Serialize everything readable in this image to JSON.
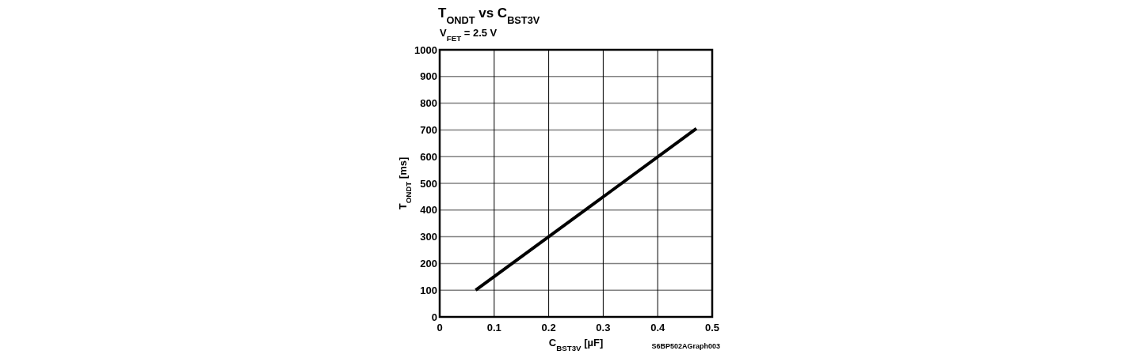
{
  "chart_data": {
    "type": "line",
    "title": "T$_{ONDT}$ vs C$_{BST3V}$",
    "subtitle": "V$_{FET}$ = 2.5 V",
    "xlabel": "C$_{BST3V}$ [µF]",
    "ylabel": "T$_{ONDT}$ [ms]",
    "annotations": [
      "S6BP502AGraph003"
    ],
    "x": [
      0.066,
      0.471
    ],
    "series": [
      {
        "color": "#000000",
        "values": [
          100,
          705
        ]
      }
    ],
    "xlim": [
      0,
      0.5
    ],
    "xticks": [
      0,
      0.1,
      0.2,
      0.3,
      0.4,
      0.5
    ],
    "ylim": [
      0,
      1000
    ],
    "yticks": [
      0,
      100,
      200,
      300,
      400,
      500,
      600,
      700,
      800,
      900,
      1000
    ],
    "grid": true,
    "marker": "none",
    "line_style": "solid"
  }
}
